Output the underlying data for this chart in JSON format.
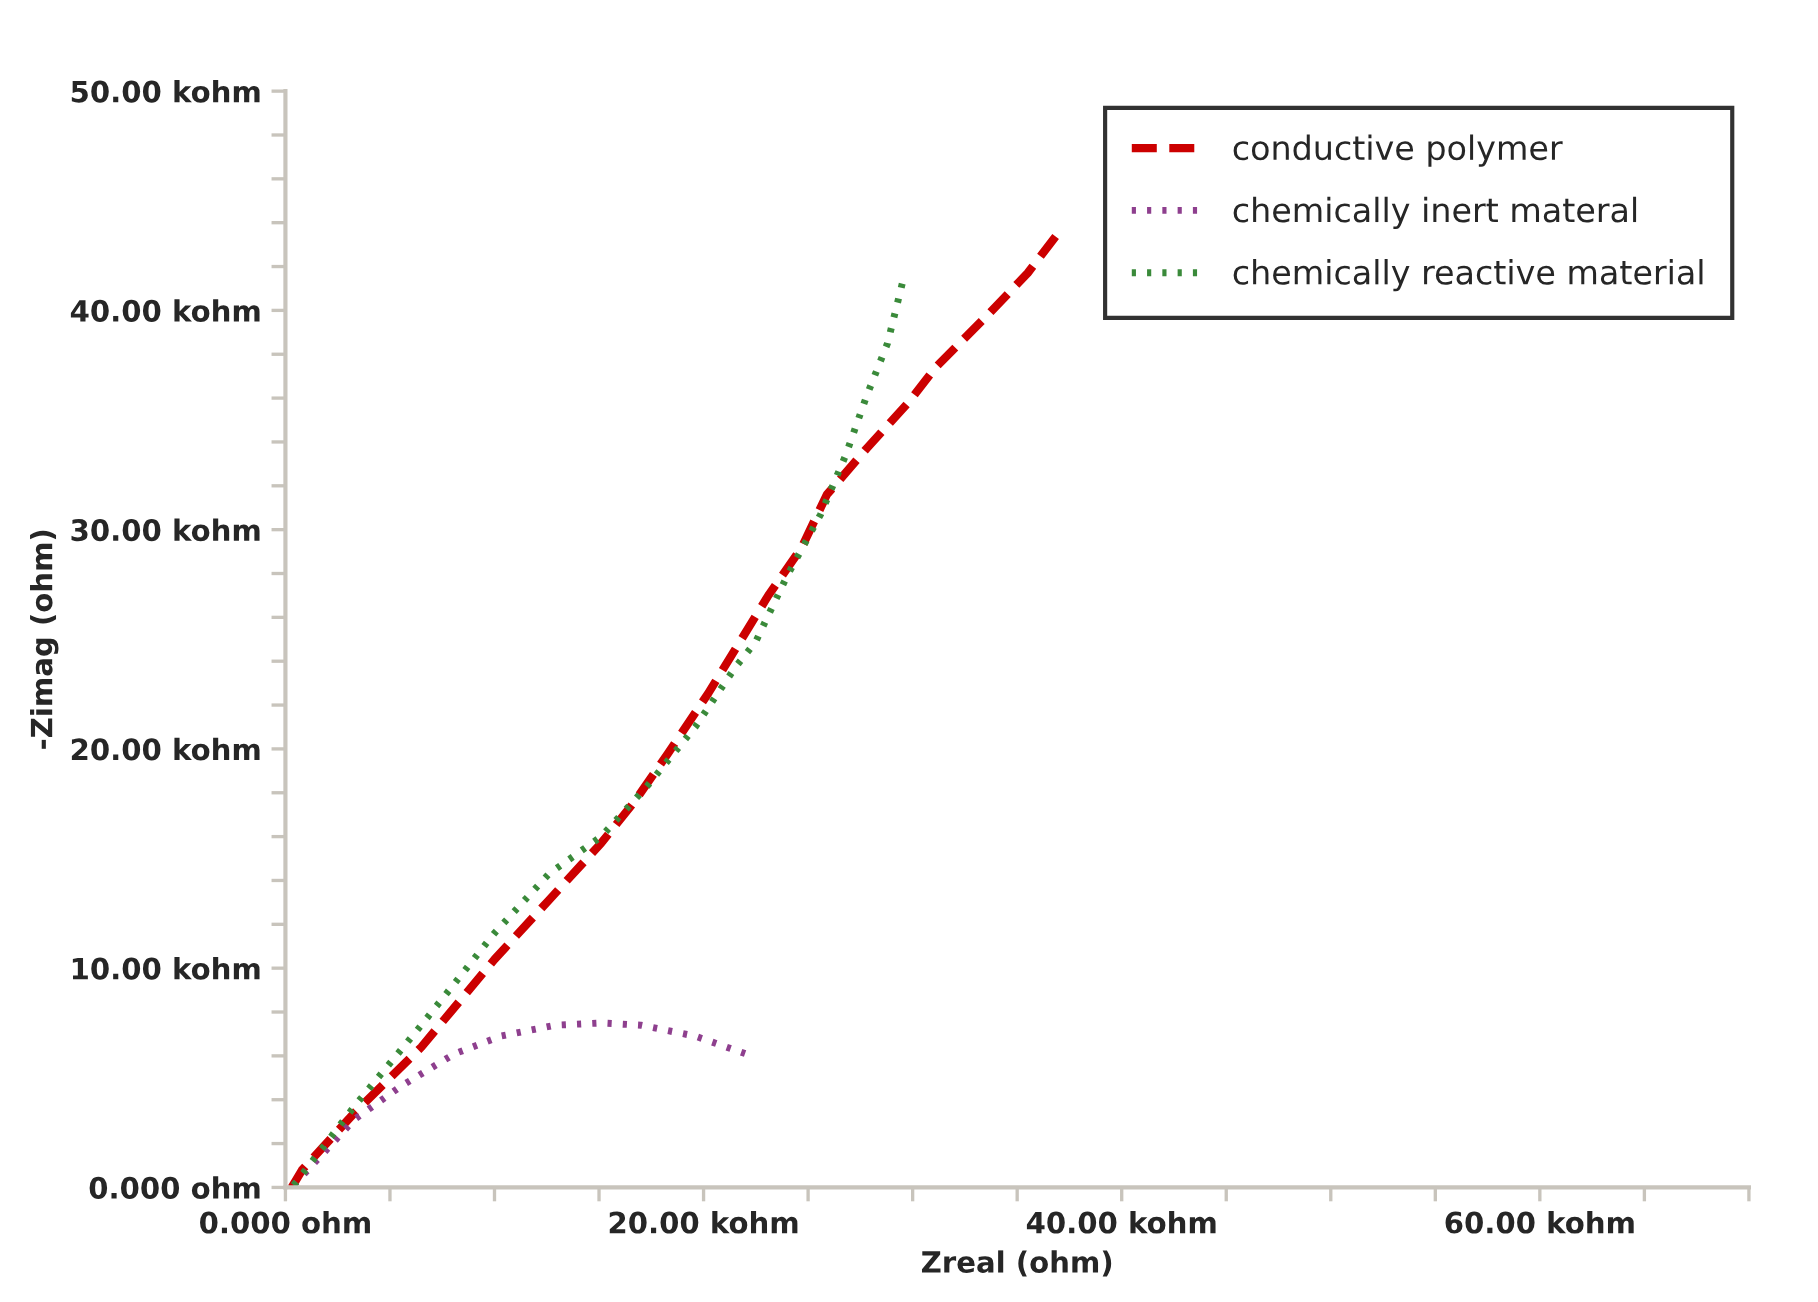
{
  "chart_data": {
    "type": "line",
    "xlabel": "Zreal (ohm)",
    "ylabel": "-Zimag (ohm)",
    "xlim": [
      0,
      70
    ],
    "ylim": [
      0,
      50
    ],
    "xticks": [
      {
        "value": 0,
        "label": "0.000 ohm"
      },
      {
        "value": 5,
        "label": null
      },
      {
        "value": 10,
        "label": null
      },
      {
        "value": 15,
        "label": null
      },
      {
        "value": 20,
        "label": "20.00 kohm"
      },
      {
        "value": 25,
        "label": null
      },
      {
        "value": 30,
        "label": null
      },
      {
        "value": 35,
        "label": null
      },
      {
        "value": 40,
        "label": "40.00 kohm"
      },
      {
        "value": 45,
        "label": null
      },
      {
        "value": 50,
        "label": null
      },
      {
        "value": 55,
        "label": null
      },
      {
        "value": 60,
        "label": "60.00 kohm"
      },
      {
        "value": 65,
        "label": null
      },
      {
        "value": 70,
        "label": null
      }
    ],
    "yticks": [
      {
        "value": 0,
        "label": "0.000 ohm"
      },
      {
        "value": 2,
        "label": null
      },
      {
        "value": 4,
        "label": null
      },
      {
        "value": 6,
        "label": null
      },
      {
        "value": 8,
        "label": null
      },
      {
        "value": 10,
        "label": "10.00 kohm"
      },
      {
        "value": 12,
        "label": null
      },
      {
        "value": 14,
        "label": null
      },
      {
        "value": 16,
        "label": null
      },
      {
        "value": 18,
        "label": null
      },
      {
        "value": 20,
        "label": "20.00 kohm"
      },
      {
        "value": 22,
        "label": null
      },
      {
        "value": 24,
        "label": null
      },
      {
        "value": 26,
        "label": null
      },
      {
        "value": 28,
        "label": null
      },
      {
        "value": 30,
        "label": "30.00 kohm"
      },
      {
        "value": 32,
        "label": null
      },
      {
        "value": 34,
        "label": null
      },
      {
        "value": 36,
        "label": null
      },
      {
        "value": 38,
        "label": null
      },
      {
        "value": 40,
        "label": "40.00 kohm"
      },
      {
        "value": 42,
        "label": null
      },
      {
        "value": 44,
        "label": null
      },
      {
        "value": 46,
        "label": null
      },
      {
        "value": 48,
        "label": null
      },
      {
        "value": 50,
        "label": "50.00 kohm"
      }
    ],
    "grid": false,
    "legend": "top right",
    "marker": "none",
    "series": [
      {
        "name": "conductive polymer",
        "color": "#cc0000",
        "line_style": "dashed",
        "x": [
          0.3,
          0.8,
          3.3,
          6.5,
          10.0,
          12.6,
          15.1,
          16.7,
          18.3,
          20.2,
          23.1,
          24.7,
          25.9,
          27.8,
          29.8,
          31.1,
          33.6,
          35.5,
          37.1
        ],
        "values": [
          0,
          0.8,
          3.4,
          6.4,
          10.4,
          13.1,
          15.7,
          17.6,
          19.8,
          22.5,
          27.0,
          29.2,
          31.6,
          33.7,
          35.8,
          37.4,
          39.8,
          41.7,
          43.7
        ]
      },
      {
        "name": "chemically inert materal",
        "color": "#8e3f8e",
        "line_style": "dotted",
        "x": [
          0.4,
          3.3,
          5.5,
          8.1,
          10.3,
          12.9,
          15.1,
          17.0,
          19.6,
          22.3
        ],
        "values": [
          0.1,
          3.1,
          4.6,
          6.1,
          6.9,
          7.4,
          7.5,
          7.4,
          6.9,
          6.0
        ]
      },
      {
        "name": "chemically reactive material",
        "color": "#3a8a3a",
        "line_style": "dotted",
        "x": [
          0.4,
          3.3,
          6.5,
          10.0,
          12.6,
          15.1,
          17.3,
          19.6,
          21.5,
          22.5,
          24.0,
          25.6,
          26.8,
          27.8,
          28.8,
          29.6
        ],
        "values": [
          0.1,
          3.7,
          7.4,
          11.6,
          14.3,
          16.0,
          18.3,
          21.0,
          23.7,
          24.9,
          27.9,
          30.7,
          33.4,
          36.1,
          38.5,
          41.6
        ]
      }
    ]
  }
}
